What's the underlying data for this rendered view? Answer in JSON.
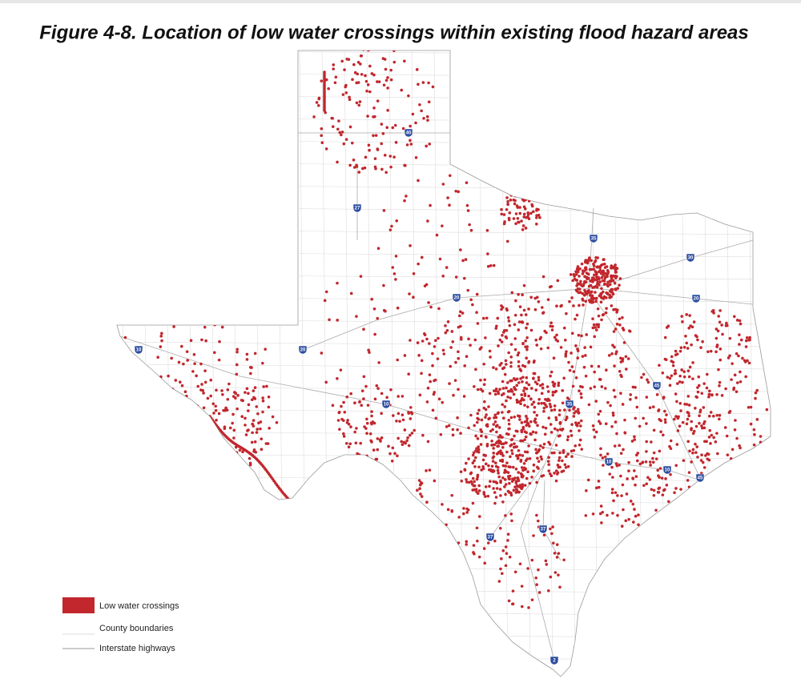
{
  "title": "Figure 4-8. Location of low water crossings within existing flood hazard areas",
  "legend": [
    "Low water crossings",
    "County boundaries",
    "Interstate highways"
  ],
  "shields": [
    "40",
    "27",
    "35",
    "30",
    "20",
    "20",
    "10",
    "20",
    "10",
    "35",
    "45",
    "10",
    "10",
    "45",
    "37",
    "37",
    "2"
  ]
}
